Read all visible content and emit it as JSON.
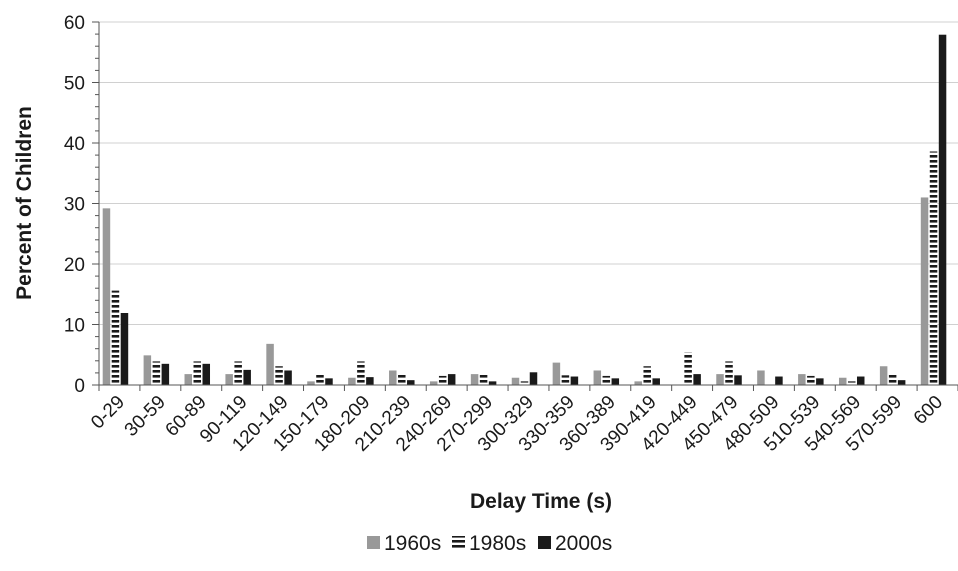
{
  "chart_data": {
    "type": "bar",
    "xlabel": "Delay Time (s)",
    "ylabel": "Percent of Children",
    "ylim": [
      0,
      60
    ],
    "yticks": [
      0,
      10,
      20,
      30,
      40,
      50,
      60
    ],
    "grid": true,
    "legend_position": "bottom-center",
    "categories": [
      "0-29",
      "30-59",
      "60-89",
      "90-119",
      "120-149",
      "150-179",
      "180-209",
      "210-239",
      "240-269",
      "270-299",
      "300-329",
      "330-359",
      "360-389",
      "390-419",
      "420-449",
      "450-479",
      "480-509",
      "510-539",
      "540-569",
      "570-599",
      "600"
    ],
    "series": [
      {
        "name": "1960s",
        "color": "#999999",
        "pattern": "solid",
        "values": [
          29.2,
          4.9,
          1.8,
          1.8,
          6.8,
          0.6,
          1.2,
          2.4,
          0.6,
          1.8,
          1.2,
          3.7,
          2.4,
          0.6,
          0,
          1.8,
          2.4,
          1.8,
          1.2,
          3.1,
          31
        ]
      },
      {
        "name": "1980s",
        "color": "#1a1a1a",
        "pattern": "striped",
        "values": [
          15.6,
          3.9,
          3.9,
          3.9,
          3.1,
          1.8,
          3.9,
          1.8,
          1.5,
          1.8,
          0.6,
          1.6,
          1.5,
          3.1,
          5.4,
          3.9,
          0,
          1.5,
          0.6,
          1.8,
          38.6
        ]
      },
      {
        "name": "2000s",
        "color": "#1a1a1a",
        "pattern": "solid",
        "values": [
          11.9,
          3.5,
          3.5,
          2.5,
          2.4,
          1.1,
          1.3,
          0.8,
          1.8,
          0.6,
          2.1,
          1.4,
          1.1,
          1.1,
          1.8,
          1.6,
          1.4,
          1.1,
          1.4,
          0.8,
          57.9
        ]
      }
    ]
  }
}
